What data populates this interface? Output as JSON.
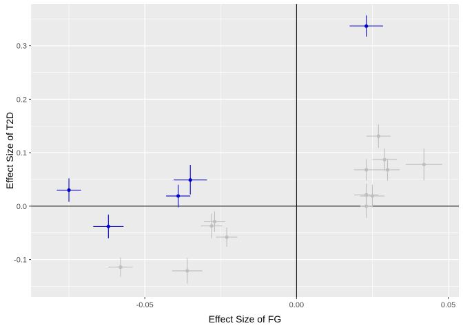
{
  "chart_data": {
    "type": "scatter",
    "title": "",
    "xlabel": "Effect Size of FG",
    "ylabel": "Effect Size of T2D",
    "xlim": [
      -0.0875,
      0.0535
    ],
    "ylim": [
      -0.17,
      0.378
    ],
    "x_ticks": [
      -0.05,
      0.0,
      0.05
    ],
    "x_tick_labels": [
      "-0.05",
      "0.00",
      "0.05"
    ],
    "y_ticks": [
      -0.1,
      0.0,
      0.1,
      0.2,
      0.3
    ],
    "y_tick_labels": [
      "-0.1",
      "0.0",
      "0.1",
      "0.2",
      "0.3"
    ],
    "reference_lines": {
      "x": 0,
      "y": 0
    },
    "colors": {
      "panel": "#ebebeb",
      "grid_major": "#ffffff",
      "highlight": "#0000cd",
      "other": "#bebebe",
      "reference_line": "#000000"
    },
    "series": [
      {
        "name": "highlighted",
        "points": [
          {
            "x": -0.075,
            "y": 0.03,
            "x_lo": -0.079,
            "x_hi": -0.071,
            "y_lo": 0.008,
            "y_hi": 0.052
          },
          {
            "x": -0.062,
            "y": -0.038,
            "x_lo": -0.067,
            "x_hi": -0.057,
            "y_lo": -0.06,
            "y_hi": -0.016
          },
          {
            "x": -0.039,
            "y": 0.019,
            "x_lo": -0.043,
            "x_hi": -0.035,
            "y_lo": -0.002,
            "y_hi": 0.04
          },
          {
            "x": -0.035,
            "y": 0.049,
            "x_lo": -0.0405,
            "x_hi": -0.0295,
            "y_lo": 0.022,
            "y_hi": 0.077
          },
          {
            "x": 0.023,
            "y": 0.337,
            "x_lo": 0.0175,
            "x_hi": 0.0285,
            "y_lo": 0.317,
            "y_hi": 0.357
          }
        ]
      },
      {
        "name": "other",
        "points": [
          {
            "x": -0.058,
            "y": -0.114,
            "x_lo": -0.062,
            "x_hi": -0.054,
            "y_lo": -0.132,
            "y_hi": -0.096
          },
          {
            "x": -0.036,
            "y": -0.121,
            "x_lo": -0.041,
            "x_hi": -0.031,
            "y_lo": -0.145,
            "y_hi": -0.097
          },
          {
            "x": -0.028,
            "y": -0.037,
            "x_lo": -0.0315,
            "x_hi": -0.0245,
            "y_lo": -0.06,
            "y_hi": -0.014
          },
          {
            "x": -0.027,
            "y": -0.029,
            "x_lo": -0.0305,
            "x_hi": -0.0235,
            "y_lo": -0.048,
            "y_hi": -0.01
          },
          {
            "x": -0.023,
            "y": -0.058,
            "x_lo": -0.0265,
            "x_hi": -0.0195,
            "y_lo": -0.076,
            "y_hi": -0.04
          },
          {
            "x": 0.023,
            "y": 0.068,
            "x_lo": 0.019,
            "x_hi": 0.027,
            "y_lo": 0.048,
            "y_hi": 0.088
          },
          {
            "x": 0.023,
            "y": 0.021,
            "x_lo": 0.019,
            "x_hi": 0.027,
            "y_lo": 0.0,
            "y_hi": 0.042
          },
          {
            "x": 0.023,
            "y": 0.0,
            "x_lo": 0.021,
            "x_hi": 0.025,
            "y_lo": -0.022,
            "y_hi": 0.022
          },
          {
            "x": 0.025,
            "y": 0.019,
            "x_lo": 0.021,
            "x_hi": 0.029,
            "y_lo": -0.002,
            "y_hi": 0.04
          },
          {
            "x": 0.027,
            "y": 0.131,
            "x_lo": 0.023,
            "x_hi": 0.031,
            "y_lo": 0.109,
            "y_hi": 0.153
          },
          {
            "x": 0.029,
            "y": 0.087,
            "x_lo": 0.025,
            "x_hi": 0.033,
            "y_lo": 0.066,
            "y_hi": 0.108
          },
          {
            "x": 0.03,
            "y": 0.068,
            "x_lo": 0.026,
            "x_hi": 0.034,
            "y_lo": 0.048,
            "y_hi": 0.088
          },
          {
            "x": 0.042,
            "y": 0.078,
            "x_lo": 0.036,
            "x_hi": 0.048,
            "y_lo": 0.048,
            "y_hi": 0.108
          }
        ]
      }
    ]
  }
}
